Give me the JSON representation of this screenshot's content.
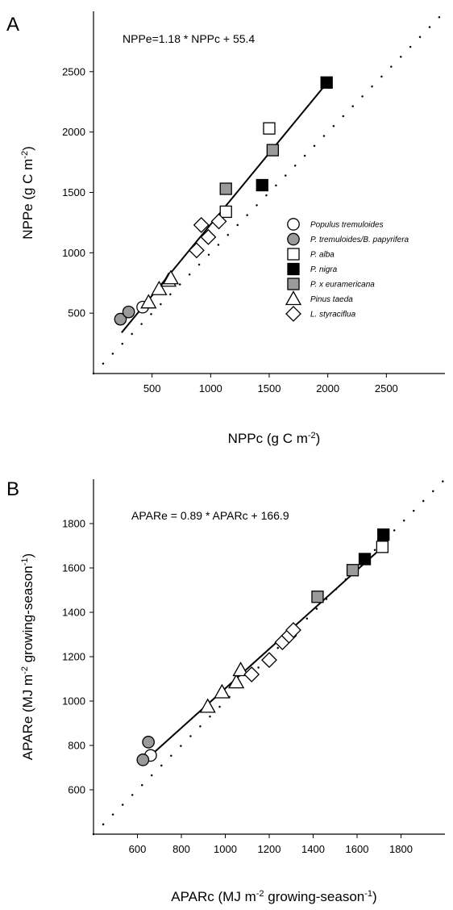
{
  "chart_data": [
    {
      "panel": "A",
      "type": "scatter",
      "equation": "NPPe=1.18 * NPPc + 55.4",
      "xlabel": "NPPc (g C m",
      "xlabel_sup": "-2",
      "xlabel_end": ")",
      "ylabel": "NPPe (g C m",
      "ylabel_sup": "-2",
      "ylabel_end": ")",
      "xlim": [
        0,
        3000
      ],
      "ylim": [
        0,
        3000
      ],
      "xticks": [
        500,
        1000,
        1500,
        2000,
        2500
      ],
      "yticks": [
        500,
        1000,
        1500,
        2000,
        2500
      ],
      "grid": false,
      "one_to_one_line": true,
      "fit_line": {
        "slope": 1.18,
        "intercept": 55.4,
        "x_range": [
          240,
          1990
        ]
      },
      "legend_position": "center-right",
      "series": [
        {
          "name": "Populus tremuloides",
          "marker": "circle",
          "fill": "#ffffff",
          "points": [
            [
              420,
              550
            ]
          ]
        },
        {
          "name": "P. tremuloides/B. papyrifera",
          "marker": "circle",
          "fill": "#9a9a9a",
          "points": [
            [
              230,
              450
            ],
            [
              300,
              510
            ]
          ]
        },
        {
          "name": "P. alba",
          "marker": "square",
          "fill": "#ffffff",
          "points": [
            [
              1130,
              1340
            ],
            [
              1500,
              2030
            ]
          ]
        },
        {
          "name": "P. nigra",
          "marker": "square",
          "fill": "#000000",
          "points": [
            [
              1440,
              1560
            ],
            [
              1990,
              2410
            ]
          ]
        },
        {
          "name": "P. x euramericana",
          "marker": "square",
          "fill": "#9a9a9a",
          "points": [
            [
              1130,
              1530
            ],
            [
              1530,
              1850
            ]
          ]
        },
        {
          "name": "Pinus taeda",
          "marker": "triangle",
          "fill": "#ffffff",
          "points": [
            [
              470,
              590
            ],
            [
              560,
              700
            ],
            [
              640,
              770
            ],
            [
              660,
              790
            ]
          ]
        },
        {
          "name": "L. styraciflua",
          "marker": "diamond",
          "fill": "#ffffff",
          "points": [
            [
              880,
              1020
            ],
            [
              920,
              1230
            ],
            [
              980,
              1130
            ],
            [
              1070,
              1260
            ]
          ]
        }
      ]
    },
    {
      "panel": "B",
      "type": "scatter",
      "equation": "APARe = 0.89 * APARc + 166.9",
      "xlabel": "APARc (MJ m",
      "xlabel_sup": "-2",
      "xlabel_mid": " growing-season",
      "xlabel_sup2": "-1",
      "xlabel_end": ")",
      "ylabel": "APARe (MJ m",
      "ylabel_sup": "-2",
      "ylabel_mid": " growing-season",
      "ylabel_sup2": "-1",
      "ylabel_end": ")",
      "xlim": [
        400,
        2000
      ],
      "ylim": [
        400,
        2000
      ],
      "xticks": [
        600,
        800,
        1000,
        1200,
        1400,
        1600,
        1800
      ],
      "yticks": [
        600,
        800,
        1000,
        1200,
        1400,
        1600,
        1800
      ],
      "grid": false,
      "one_to_one_line": true,
      "fit_line": {
        "slope": 0.89,
        "intercept": 166.9,
        "x_range": [
          625,
          1725
        ]
      },
      "series": [
        {
          "name": "Populus tremuloides",
          "marker": "circle",
          "fill": "#ffffff",
          "points": [
            [
              660,
              755
            ]
          ]
        },
        {
          "name": "P. tremuloides/B. papyrifera",
          "marker": "circle",
          "fill": "#9a9a9a",
          "points": [
            [
              625,
              735
            ],
            [
              650,
              815
            ]
          ]
        },
        {
          "name": "P. alba",
          "marker": "square",
          "fill": "#ffffff",
          "points": [
            [
              1715,
              1695
            ]
          ]
        },
        {
          "name": "P. nigra",
          "marker": "square",
          "fill": "#000000",
          "points": [
            [
              1635,
              1640
            ],
            [
              1720,
              1750
            ]
          ]
        },
        {
          "name": "P. x euramericana",
          "marker": "square",
          "fill": "#9a9a9a",
          "points": [
            [
              1420,
              1470
            ],
            [
              1580,
              1590
            ]
          ]
        },
        {
          "name": "Pinus taeda",
          "marker": "triangle",
          "fill": "#ffffff",
          "points": [
            [
              920,
              975
            ],
            [
              985,
              1040
            ],
            [
              1050,
              1085
            ],
            [
              1070,
              1140
            ]
          ]
        },
        {
          "name": "L. styraciflua",
          "marker": "diamond",
          "fill": "#ffffff",
          "points": [
            [
              1120,
              1120
            ],
            [
              1200,
              1185
            ],
            [
              1260,
              1265
            ],
            [
              1290,
              1295
            ],
            [
              1310,
              1320
            ]
          ]
        }
      ]
    }
  ]
}
